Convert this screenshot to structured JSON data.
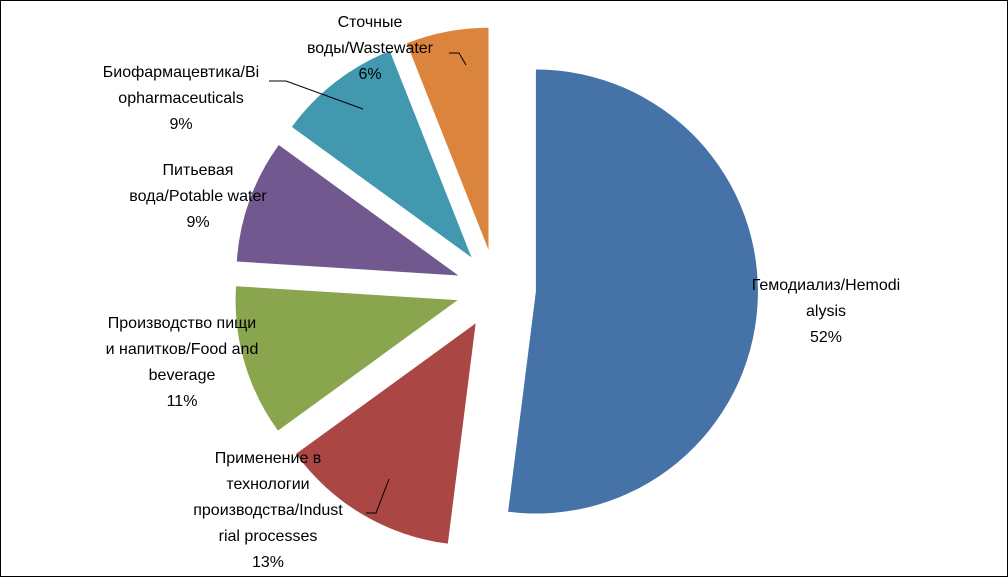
{
  "chart_data": {
    "type": "pie",
    "exploded": true,
    "slices": [
      {
        "label": [
          "Гемодиализ/Hemodi",
          "alysis"
        ],
        "percent_text": "52%",
        "value": 52,
        "color": "#4572A7"
      },
      {
        "label": [
          "Применение  в",
          "технологии",
          "производства/Indust",
          "rial processes"
        ],
        "percent_text": "13%",
        "value": 13,
        "color": "#AA4643"
      },
      {
        "label": [
          "Производство пищи",
          "и напитков/Food and",
          "beverage"
        ],
        "percent_text": "11%",
        "value": 11,
        "color": "#89A54E"
      },
      {
        "label": [
          "Питьевая",
          "вода/Potable water"
        ],
        "percent_text": "9%",
        "value": 9,
        "color": "#71588F"
      },
      {
        "label": [
          "Биофармацевтика/Bi",
          "opharmaceuticals"
        ],
        "percent_text": "9%",
        "value": 9,
        "color": "#4198AF"
      },
      {
        "label": [
          "Сточные",
          "воды/Wastewater"
        ],
        "percent_text": "6%",
        "value": 6,
        "color": "#DB843D"
      }
    ]
  }
}
